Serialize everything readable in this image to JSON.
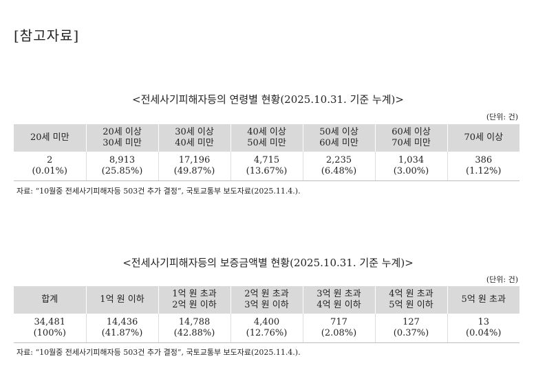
{
  "heading": "[참고자료]",
  "table1": {
    "title": "<전세사기피해자등의 연령별 현황(2025.10.31. 기준 누계)>",
    "unit": "(단위: 건)",
    "headers": [
      [
        "20세 미만",
        ""
      ],
      [
        "20세 이상",
        "30세 미만"
      ],
      [
        "30세 이상",
        "40세 미만"
      ],
      [
        "40세 이상",
        "50세 미만"
      ],
      [
        "50세 이상",
        "60세 미만"
      ],
      [
        "60세 이상",
        "70세 미만"
      ],
      [
        "70세 이상",
        ""
      ]
    ],
    "values": [
      [
        "2",
        "(0.01%)"
      ],
      [
        "8,913",
        "(25.85%)"
      ],
      [
        "17,196",
        "(49.87%)"
      ],
      [
        "4,715",
        "(13.67%)"
      ],
      [
        "2,235",
        "(6.48%)"
      ],
      [
        "1,034",
        "(3.00%)"
      ],
      [
        "386",
        "(1.12%)"
      ]
    ],
    "source": "자료: “10월중 전세사기피해자등 503건 추가 결정”, 국토교통부 보도자료(2025.11.4.)."
  },
  "table2": {
    "title": "<전세사기피해자등의 보증금액별 현황(2025.10.31. 기준 누계)>",
    "unit": "(단위: 건)",
    "headers": [
      [
        "합계",
        ""
      ],
      [
        "1억 원 이하",
        ""
      ],
      [
        "1억 원 초과",
        "2억 원 이하"
      ],
      [
        "2억 원 초과",
        "3억 원 이하"
      ],
      [
        "3억 원 초과",
        "4억 원 이하"
      ],
      [
        "4억 원 초과",
        "5억 원 이하"
      ],
      [
        "5억 원 초과",
        ""
      ]
    ],
    "values": [
      [
        "34,481",
        "(100%)"
      ],
      [
        "14,436",
        "(41.87%)"
      ],
      [
        "14,788",
        "(42.88%)"
      ],
      [
        "4,400",
        "(12.76%)"
      ],
      [
        "717",
        "(2.08%)"
      ],
      [
        "127",
        "(0.37%)"
      ],
      [
        "13",
        "(0.04%)"
      ]
    ],
    "source": "자료: “10월중 전세사기피해자등 503건 추가 결정”, 국토교통부 보도자료(2025.11.4.)."
  }
}
